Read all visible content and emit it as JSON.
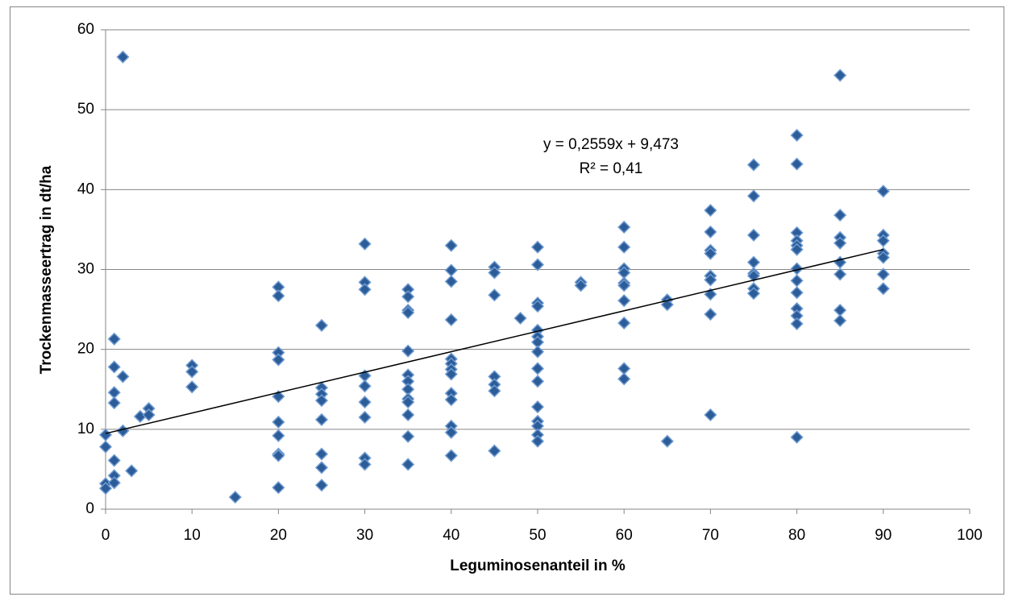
{
  "chart_data": {
    "type": "scatter",
    "x_label": "Leguminosenanteil in %",
    "y_label": "Trockenmasseertrag in dt/ha",
    "x": [
      0,
      0,
      0,
      0,
      1,
      1,
      1,
      1,
      1,
      1,
      1,
      2,
      2,
      2,
      3,
      4,
      5,
      5,
      10,
      10,
      10,
      15,
      20,
      20,
      20,
      20,
      20,
      20,
      20,
      20,
      20,
      20,
      25,
      25,
      25,
      25,
      25,
      25,
      25,
      25,
      30,
      30,
      30,
      30,
      30,
      30,
      30,
      30,
      30,
      35,
      35,
      35,
      35,
      35,
      35,
      35,
      35,
      35,
      35,
      35,
      35,
      35,
      40,
      40,
      40,
      40,
      40,
      40,
      40,
      40,
      40,
      40,
      40,
      40,
      40,
      45,
      45,
      45,
      45,
      45,
      45,
      45,
      48,
      50,
      50,
      50,
      50,
      50,
      50,
      50,
      50,
      50,
      50,
      50,
      50,
      50,
      50,
      50,
      55,
      55,
      60,
      60,
      60,
      60,
      60,
      60,
      60,
      60,
      60,
      60,
      65,
      65,
      65,
      70,
      70,
      70,
      70,
      70,
      70,
      70,
      70,
      70,
      75,
      75,
      75,
      75,
      75,
      75,
      75,
      75,
      80,
      80,
      80,
      80,
      80,
      80,
      80,
      80,
      80,
      80,
      80,
      80,
      80,
      85,
      85,
      85,
      85,
      85,
      85,
      85,
      85,
      90,
      90,
      90,
      90,
      90,
      90,
      90
    ],
    "y": [
      9.3,
      7.8,
      3.2,
      2.6,
      21.3,
      17.8,
      14.6,
      13.3,
      6.1,
      4.2,
      3.3,
      56.6,
      16.6,
      9.8,
      4.8,
      11.6,
      12.6,
      11.8,
      18,
      17.2,
      15.3,
      1.5,
      27.8,
      26.7,
      19.6,
      18.7,
      14.1,
      10.9,
      9.2,
      6.9,
      6.7,
      2.7,
      23,
      15.2,
      14.4,
      13.6,
      11.2,
      6.9,
      5.2,
      3,
      33.2,
      28.4,
      27.5,
      16.7,
      15.4,
      13.4,
      11.5,
      6.4,
      5.6,
      27.5,
      26.6,
      24.9,
      24.6,
      19.8,
      16.8,
      16,
      15,
      13.8,
      13.4,
      11.8,
      9.1,
      5.6,
      33,
      29.9,
      28.5,
      23.7,
      18.8,
      18.2,
      17.5,
      16.9,
      14.5,
      13.7,
      10.4,
      9.6,
      6.7,
      30.3,
      29.6,
      26.8,
      16.6,
      15.6,
      14.8,
      7.3,
      23.9,
      32.8,
      30.6,
      25.8,
      25.4,
      22.4,
      21.6,
      20.9,
      19.7,
      17.6,
      16,
      12.8,
      11,
      10.4,
      9.3,
      8.5,
      28.4,
      28,
      35.3,
      32.8,
      30.1,
      29.6,
      28.3,
      28,
      26.1,
      23.3,
      17.6,
      16.3,
      26.2,
      25.6,
      8.5,
      37.4,
      34.7,
      32.4,
      32,
      29.2,
      28.7,
      26.9,
      24.4,
      11.8,
      43.1,
      39.2,
      34.3,
      30.9,
      29.5,
      29.2,
      27.6,
      27,
      46.8,
      43.2,
      34.6,
      33.6,
      33,
      32.5,
      30.1,
      28.6,
      27.1,
      25.1,
      24.2,
      23.2,
      9,
      54.3,
      36.8,
      34,
      33.3,
      30.9,
      29.4,
      24.9,
      23.6,
      39.8,
      34.3,
      33.6,
      32,
      31.5,
      29.4,
      27.6
    ],
    "color": "#2c5d99",
    "xlim": [
      0,
      100
    ],
    "xticks": [
      0,
      10,
      20,
      30,
      40,
      50,
      60,
      70,
      80,
      90,
      100
    ],
    "ylim": [
      0,
      60
    ],
    "yticks": [
      0,
      10,
      20,
      30,
      40,
      50,
      60
    ],
    "grid": true,
    "trendline": {
      "slope": 0.2559,
      "intercept": 9.473,
      "equation": "y = 0,2559x + 9,473",
      "r2": "R² = 0,41"
    }
  }
}
